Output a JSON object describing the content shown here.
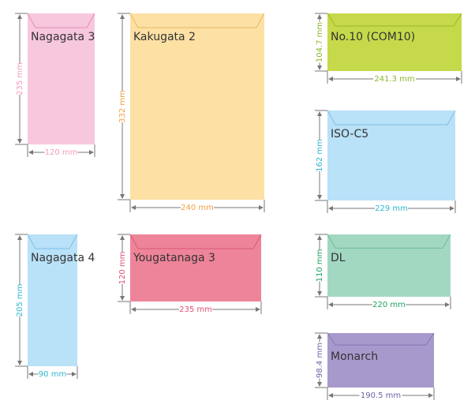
{
  "envelopes": [
    {
      "name": "Nagagata 3",
      "height": "235 mm",
      "width": "120 mm"
    },
    {
      "name": "Kakugata 2",
      "height": "332 mm",
      "width": "240 mm"
    },
    {
      "name": "No.10 (COM10)",
      "height": "104.7 mm",
      "width": "241.3 mm"
    },
    {
      "name": "ISO-C5",
      "height": "162 mm",
      "width": "229 mm"
    },
    {
      "name": "Nagagata 4",
      "height": "205 mm",
      "width": "90 mm"
    },
    {
      "name": "Yougatanaga 3",
      "height": "120 mm",
      "width": "235 mm"
    },
    {
      "name": "DL",
      "height": "110 mm",
      "width": "220 mm"
    },
    {
      "name": "Monarch",
      "height": "98.4 mm",
      "width": "190.5 mm"
    }
  ]
}
